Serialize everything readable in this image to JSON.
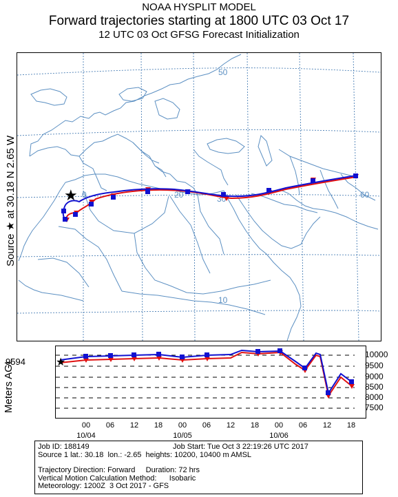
{
  "header": {
    "line1": "NOAA HYSPLIT MODEL",
    "line2": "Forward trajectories starting at 1800 UTC 03 Oct 17",
    "line3": "12 UTC 03 Oct    GFSG  Forecast Initialization"
  },
  "side_label": "Source ★ at   30.18 N   2.65 W",
  "map": {
    "lat_labels": [
      "50",
      "30",
      "10"
    ],
    "lon_labels": [
      "0",
      "20",
      "60"
    ],
    "colors": {
      "land_border": "#5b8fc2",
      "grid": "#4a7fb5",
      "traj_high": "#1010d0",
      "traj_low": "#e01010"
    },
    "source_marker": "star-icon"
  },
  "vertical": {
    "ylabel": "Meters AGL",
    "source_height_label": "9594",
    "levels": [
      "10000",
      "9500",
      "9000",
      "8500",
      "8000",
      "7500"
    ],
    "hour_ticks": [
      "00",
      "06",
      "12",
      "18",
      "00",
      "06",
      "12",
      "18",
      "00",
      "06",
      "12",
      "18"
    ],
    "dates": [
      "10/04",
      "10/05",
      "10/06"
    ]
  },
  "info": {
    "job_id": "Job ID: 188149",
    "job_start": "Job Start: Tue Oct  3 22:19:26 UTC 2017",
    "source": "Source 1 lat.: 30.18  lon.: -2.65  heights: 10200, 10400 m AMSL",
    "direction": "Trajectory Direction: Forward     Duration: 72 hrs",
    "vertical_motion": "Vertical Motion Calculation Method:      Isobaric",
    "meteorology": "Meteorology: 1200Z  3 Oct 2017 - GFS"
  }
}
